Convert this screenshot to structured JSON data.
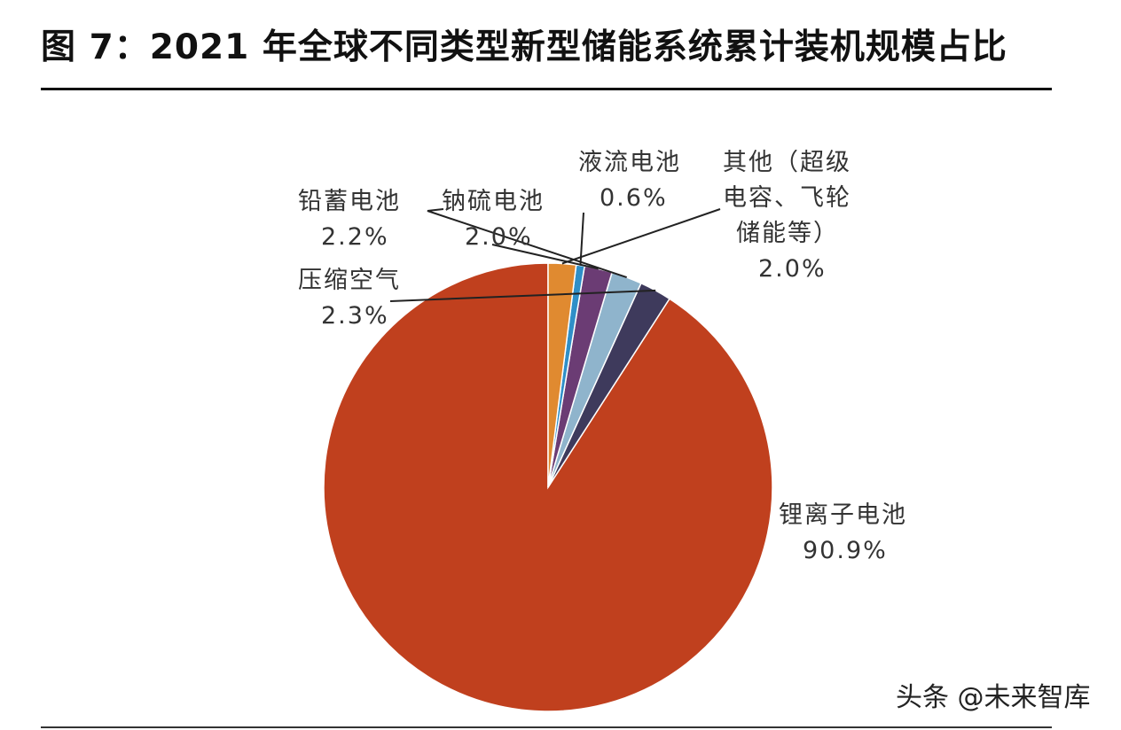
{
  "title": "图 7：2021 年全球不同类型新型储能系统累计装机规模占比",
  "watermark": "头条 @未来智库",
  "chart_data": {
    "type": "pie",
    "title": "图 7：2021 年全球不同类型新型储能系统累计装机规模占比",
    "start_angle": "12 o'clock",
    "direction": "counter-clockwise",
    "slices": [
      {
        "label_lines": [
          "锂离子电池"
        ],
        "value_text": "90.9%",
        "value": 90.9,
        "color": "#c0401e"
      },
      {
        "label_lines": [
          "压缩空气"
        ],
        "value_text": "2.3%",
        "value": 2.3,
        "color": "#3e3a5c"
      },
      {
        "label_lines": [
          "铅蓄电池"
        ],
        "value_text": "2.2%",
        "value": 2.2,
        "color": "#8fb4cc"
      },
      {
        "label_lines": [
          "钠硫电池"
        ],
        "value_text": "2.0%",
        "value": 2.0,
        "color": "#6b3c74"
      },
      {
        "label_lines": [
          "液流电池"
        ],
        "value_text": "0.6%",
        "value": 0.6,
        "color": "#2f8fc8"
      },
      {
        "label_lines": [
          "其他（超级",
          "电容、飞轮",
          "储能等）"
        ],
        "value_text": "2.0%",
        "value": 2.0,
        "color": "#e08a30"
      }
    ]
  }
}
